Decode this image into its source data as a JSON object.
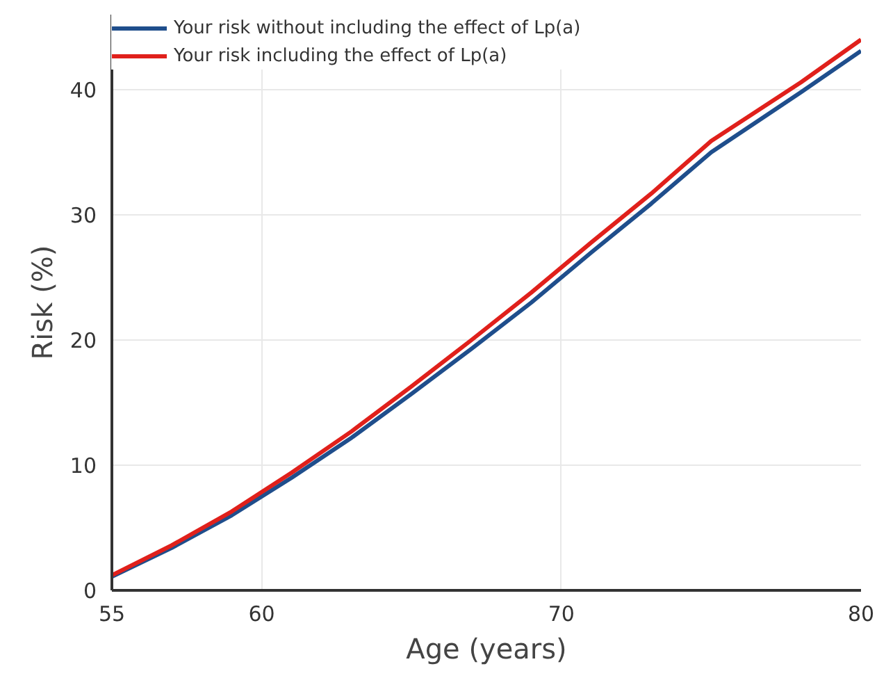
{
  "chart_data": {
    "type": "line",
    "xlabel": "Age (years)",
    "ylabel": "Risk (%)",
    "xlim": [
      55,
      80
    ],
    "ylim": [
      0,
      46
    ],
    "xticks": [
      55,
      60,
      70,
      80
    ],
    "yticks": [
      0,
      10,
      20,
      30,
      40
    ],
    "grid": true,
    "legend": "top left",
    "series": [
      {
        "name": "Your risk without including the effect of Lp(a)",
        "color": "#1f4e8c",
        "x": [
          55,
          57,
          59,
          61,
          63,
          65,
          67,
          69,
          71,
          73,
          75,
          78,
          80
        ],
        "values": [
          1.1,
          3.4,
          6.0,
          9.0,
          12.2,
          15.7,
          19.3,
          23.0,
          27.0,
          30.9,
          35.0,
          39.8,
          43.1
        ]
      },
      {
        "name": "Your risk including the effect of Lp(a)",
        "color": "#e0201b",
        "x": [
          55,
          57,
          59,
          61,
          63,
          65,
          67,
          69,
          71,
          73,
          75,
          78,
          80
        ],
        "values": [
          1.2,
          3.6,
          6.3,
          9.4,
          12.7,
          16.3,
          20.0,
          23.8,
          27.8,
          31.7,
          35.9,
          40.6,
          44.0
        ]
      }
    ]
  }
}
